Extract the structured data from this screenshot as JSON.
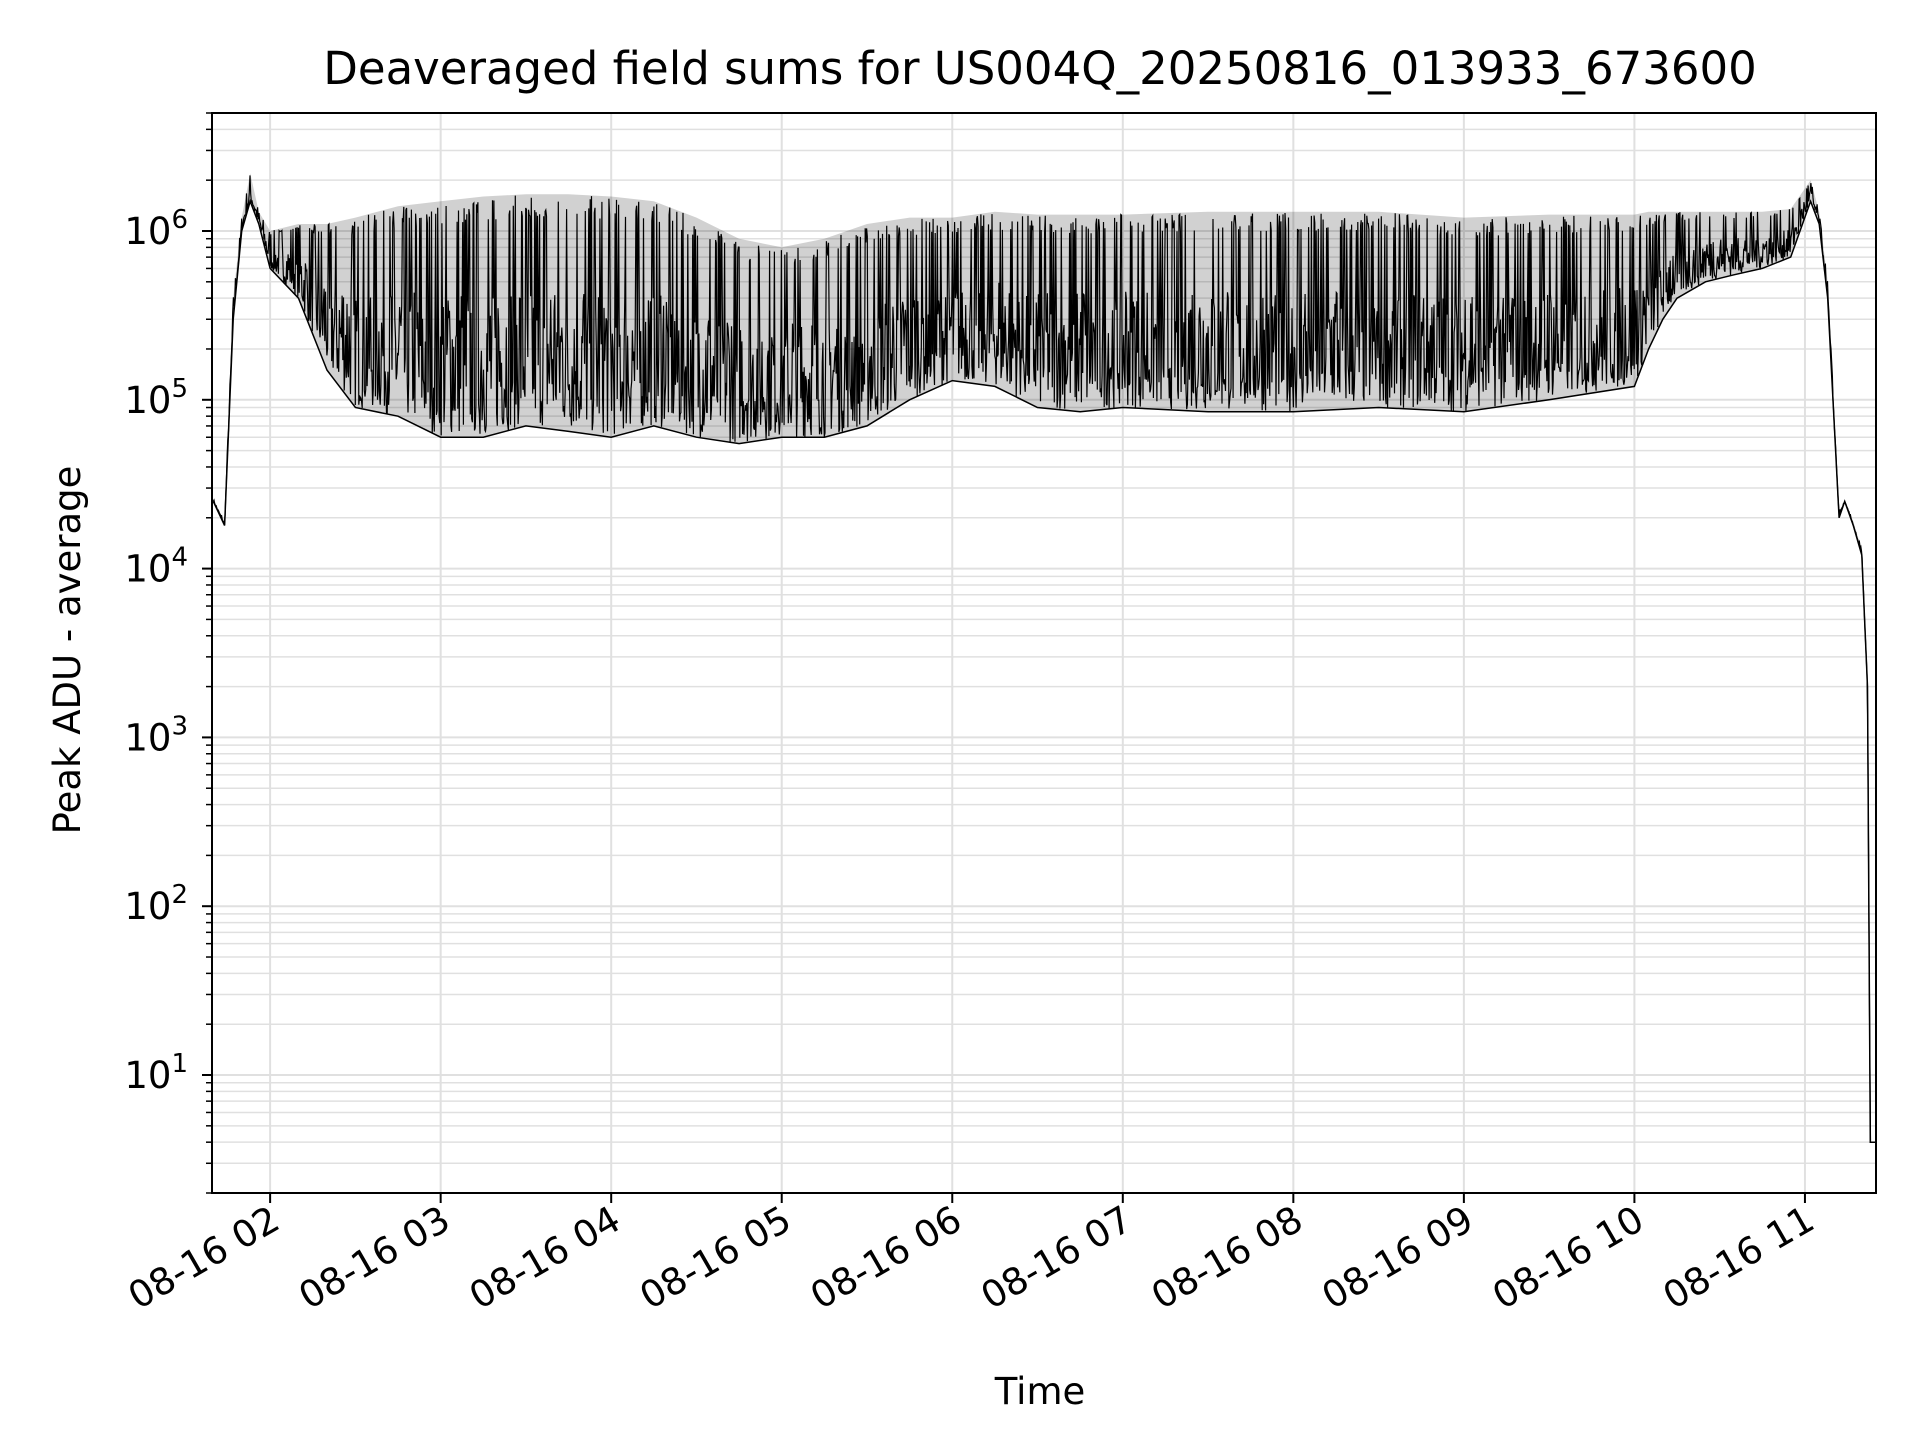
{
  "chart_data": {
    "type": "line",
    "title": "Deaveraged field sums for US004Q_20250816_013933_673600",
    "xlabel": "Time",
    "ylabel": "Peak ADU - average",
    "y_scale": "log",
    "ylim": [
      2,
      5000000
    ],
    "xlim": [
      "2025-08-16 01:39:33",
      "2025-08-16 11:25:00"
    ],
    "x_ticks": [
      {
        "value": "2025-08-16 02:00",
        "label": "08-16 02"
      },
      {
        "value": "2025-08-16 03:00",
        "label": "08-16 03"
      },
      {
        "value": "2025-08-16 04:00",
        "label": "08-16 04"
      },
      {
        "value": "2025-08-16 05:00",
        "label": "08-16 05"
      },
      {
        "value": "2025-08-16 06:00",
        "label": "08-16 06"
      },
      {
        "value": "2025-08-16 07:00",
        "label": "08-16 07"
      },
      {
        "value": "2025-08-16 08:00",
        "label": "08-16 08"
      },
      {
        "value": "2025-08-16 09:00",
        "label": "08-16 09"
      },
      {
        "value": "2025-08-16 10:00",
        "label": "08-16 10"
      },
      {
        "value": "2025-08-16 11:00",
        "label": "08-16 11"
      }
    ],
    "y_ticks": [
      {
        "value": 10,
        "base": "10",
        "exp": "1"
      },
      {
        "value": 100,
        "base": "10",
        "exp": "2"
      },
      {
        "value": 1000,
        "base": "10",
        "exp": "3"
      },
      {
        "value": 10000,
        "base": "10",
        "exp": "4"
      },
      {
        "value": 100000,
        "base": "10",
        "exp": "5"
      },
      {
        "value": 1000000,
        "base": "10",
        "exp": "6"
      }
    ],
    "grid": true,
    "line_color": "#000000",
    "grid_color": "#e0e0e0",
    "series": [
      {
        "x": [
          "2025-08-16 01:40",
          "2025-08-16 01:44",
          "2025-08-16 01:47",
          "2025-08-16 01:50",
          "2025-08-16 01:53",
          "2025-08-16 01:56",
          "2025-08-16 02:00",
          "2025-08-16 02:10",
          "2025-08-16 02:20",
          "2025-08-16 02:30",
          "2025-08-16 02:45",
          "2025-08-16 03:00",
          "2025-08-16 03:15",
          "2025-08-16 03:30",
          "2025-08-16 03:45",
          "2025-08-16 04:00",
          "2025-08-16 04:15",
          "2025-08-16 04:30",
          "2025-08-16 04:45",
          "2025-08-16 05:00",
          "2025-08-16 05:15",
          "2025-08-16 05:30",
          "2025-08-16 05:45",
          "2025-08-16 06:00",
          "2025-08-16 06:15",
          "2025-08-16 06:30",
          "2025-08-16 06:45",
          "2025-08-16 07:00",
          "2025-08-16 07:30",
          "2025-08-16 08:00",
          "2025-08-16 08:30",
          "2025-08-16 09:00",
          "2025-08-16 09:30",
          "2025-08-16 10:00",
          "2025-08-16 10:05",
          "2025-08-16 10:10",
          "2025-08-16 10:15",
          "2025-08-16 10:25",
          "2025-08-16 10:35",
          "2025-08-16 10:45",
          "2025-08-16 10:55",
          "2025-08-16 11:02",
          "2025-08-16 11:05",
          "2025-08-16 11:08",
          "2025-08-16 11:12",
          "2025-08-16 11:14",
          "2025-08-16 11:17",
          "2025-08-16 11:20",
          "2025-08-16 11:22",
          "2025-08-16 11:23",
          "2025-08-16 11:24",
          "2025-08-16 11:25"
        ],
        "y": [
          25000,
          18000,
          300000,
          1000000,
          1500000,
          1100000,
          600000,
          400000,
          150000,
          90000,
          80000,
          60000,
          60000,
          70000,
          65000,
          60000,
          70000,
          60000,
          55000,
          60000,
          60000,
          70000,
          100000,
          130000,
          120000,
          90000,
          85000,
          90000,
          85000,
          85000,
          90000,
          85000,
          100000,
          120000,
          200000,
          300000,
          400000,
          500000,
          550000,
          600000,
          700000,
          1500000,
          1100000,
          400000,
          20000,
          25000,
          18000,
          12000,
          2000,
          4,
          4,
          4
        ],
        "y_upper": [
          26000,
          19000,
          400000,
          1200000,
          2200000,
          1300000,
          1000000,
          1100000,
          1100000,
          1200000,
          1400000,
          1500000,
          1600000,
          1650000,
          1650000,
          1600000,
          1500000,
          1200000,
          900000,
          800000,
          900000,
          1100000,
          1200000,
          1200000,
          1300000,
          1250000,
          1250000,
          1250000,
          1300000,
          1300000,
          1300000,
          1200000,
          1250000,
          1250000,
          1300000,
          1300000,
          1300000,
          1300000,
          1300000,
          1300000,
          1350000,
          2000000,
          1300000,
          500000,
          22000,
          25000,
          19000,
          13000,
          2000,
          4,
          4,
          4
        ]
      }
    ]
  }
}
